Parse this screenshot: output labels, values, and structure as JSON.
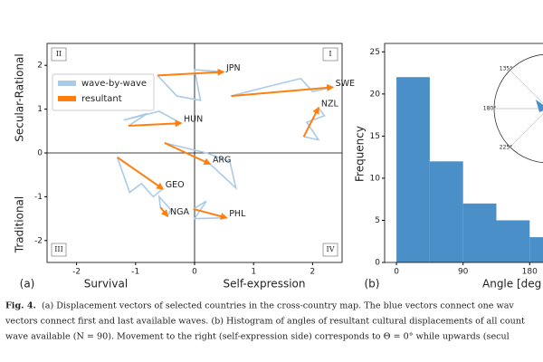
{
  "chart_data": [
    {
      "type": "vector",
      "panel_label": "(a)",
      "xlabel_left": "Survival",
      "xlabel_right": "Self-expression",
      "ylabel_top": "Secular-Rational",
      "ylabel_bottom": "Traditional",
      "quadrant_labels": [
        "II",
        "I",
        "III",
        "IV"
      ],
      "xlim": [
        -2.5,
        2.5
      ],
      "ylim": [
        -2.5,
        2.5
      ],
      "xticks": [
        -2,
        -1,
        0,
        1,
        2
      ],
      "yticks": [
        -2,
        -1,
        0,
        1,
        2
      ],
      "series": [
        {
          "name": "wave-by-wave",
          "color": "#a9cbe8"
        },
        {
          "name": "resultant",
          "color": "#ff7f0e"
        }
      ],
      "countries": [
        {
          "name": "JPN",
          "wave_x": [
            -0.63,
            -0.3,
            0.1,
            0.0,
            0.49
          ],
          "wave_y": [
            1.77,
            1.3,
            1.2,
            1.9,
            1.85
          ]
        },
        {
          "name": "SWE",
          "wave_x": [
            0.62,
            1.2,
            1.8,
            2.0,
            2.34
          ],
          "wave_y": [
            1.3,
            1.5,
            1.7,
            1.4,
            1.5
          ]
        },
        {
          "name": "NZL",
          "wave_x": [
            1.85,
            2.1,
            1.9,
            2.2,
            2.1
          ],
          "wave_y": [
            0.37,
            0.3,
            0.7,
            0.85,
            1.03
          ]
        },
        {
          "name": "HUN",
          "wave_x": [
            -1.12,
            -0.8,
            -1.2,
            -0.6,
            -0.23
          ],
          "wave_y": [
            0.62,
            0.9,
            0.75,
            0.95,
            0.68
          ]
        },
        {
          "name": "ARG",
          "wave_x": [
            -0.51,
            0.2,
            0.6,
            0.7,
            0.26
          ],
          "wave_y": [
            0.23,
            0.0,
            -0.2,
            -0.8,
            -0.25
          ]
        },
        {
          "name": "GEO",
          "wave_x": [
            -1.31,
            -1.1,
            -0.9,
            -0.7,
            -0.54
          ],
          "wave_y": [
            -0.1,
            -0.9,
            -0.7,
            -1.0,
            -0.82
          ]
        },
        {
          "name": "NGA",
          "wave_x": [
            -0.58,
            -0.6,
            -0.4,
            -0.46
          ],
          "wave_y": [
            -1.24,
            -1.0,
            -1.3,
            -1.44
          ]
        },
        {
          "name": "PHL",
          "wave_x": [
            -0.02,
            0.2,
            0.0,
            0.54
          ],
          "wave_y": [
            -1.28,
            -1.1,
            -1.5,
            -1.48
          ]
        }
      ]
    },
    {
      "type": "histogram",
      "panel_label": "(b)",
      "xlabel": "Angle [deg",
      "ylabel": "Frequency",
      "bins": [
        0,
        45,
        90,
        135,
        180,
        225
      ],
      "values": [
        22,
        12,
        7,
        5,
        3
      ],
      "color": "#4a8fc7",
      "xlim": [
        -16,
        198
      ],
      "ylim": [
        0,
        26
      ],
      "xticks": [
        0,
        90,
        180
      ],
      "yticks": [
        0,
        5,
        10,
        15,
        20,
        25
      ],
      "inset_labels": [
        "135°",
        "180°",
        "225°"
      ]
    }
  ],
  "caption": {
    "label": "Fig. 4.",
    "lines": [
      "(a) Displacement vectors of selected countries in the cross-country map. The blue vectors connect one wav",
      "vectors connect first and last available waves. (b) Histogram of angles of resultant cultural displacements of all count",
      "wave available (N = 90). Movement to the right (self-expression side) corresponds to Θ = 0° while upwards (secul"
    ]
  }
}
